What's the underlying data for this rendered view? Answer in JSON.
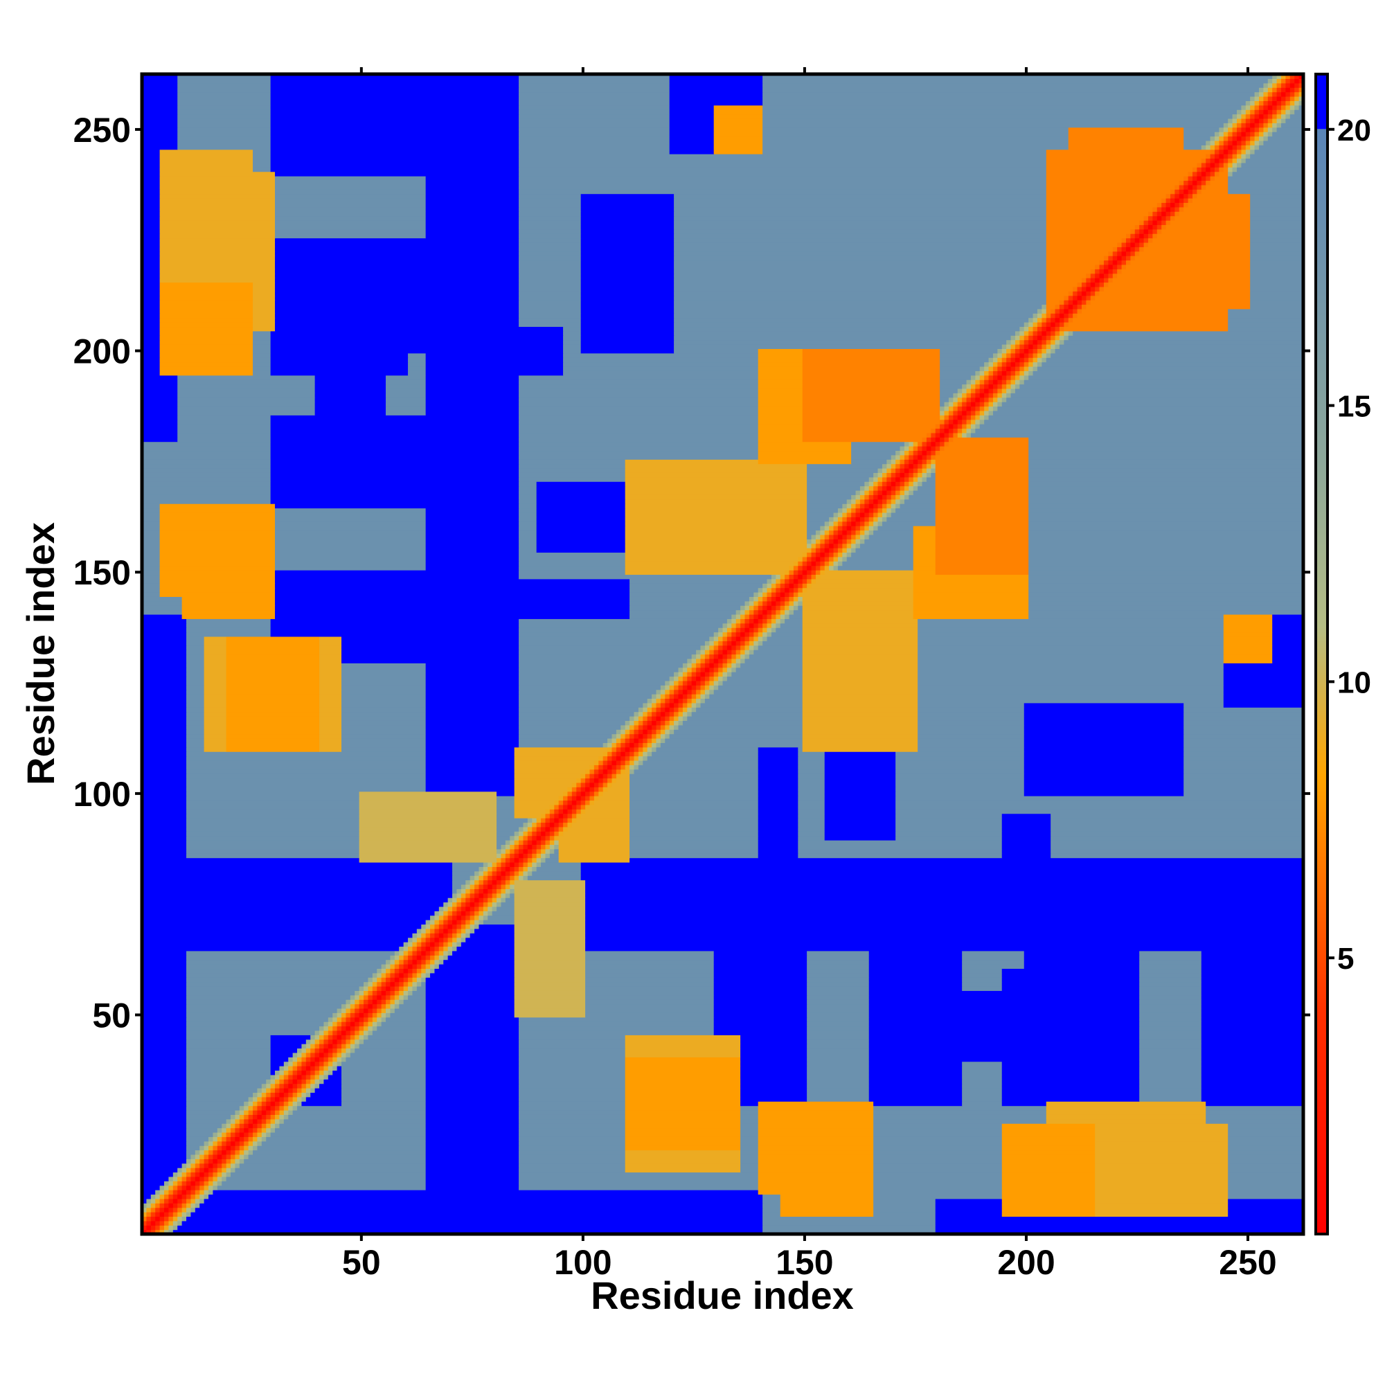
{
  "chart_data": {
    "type": "heatmap",
    "title": "",
    "xlabel": "Residue index",
    "ylabel": "Residue index",
    "xlim": [
      1,
      262
    ],
    "ylim": [
      1,
      262
    ],
    "x_ticks": [
      50,
      100,
      150,
      200,
      250
    ],
    "y_ticks": [
      50,
      100,
      150,
      200,
      250
    ],
    "x_tick_labels": [
      "50",
      "100",
      "150",
      "200",
      "250"
    ],
    "y_tick_labels": [
      "50",
      "100",
      "150",
      "200",
      "250"
    ],
    "colorbar": {
      "ticks": [
        5,
        10,
        15,
        20
      ],
      "tick_labels": [
        "5",
        "10",
        "15",
        "20"
      ],
      "range": [
        0,
        21
      ],
      "stops": [
        {
          "value": 0,
          "color": "#ff0000"
        },
        {
          "value": 4,
          "color": "#ff3000"
        },
        {
          "value": 8.3,
          "color": "#ffa500"
        },
        {
          "value": 11,
          "color": "#b5bd84"
        },
        {
          "value": 14,
          "color": "#8da89a"
        },
        {
          "value": 20,
          "color": "#5a85b8"
        },
        {
          "value": 20.01,
          "color": "#0000ff"
        },
        {
          "value": 21,
          "color": "#0000ff"
        }
      ]
    },
    "diagonal_value": 0,
    "background_value": 18,
    "far_value": 21,
    "contact_bands": [
      {
        "i": [
          5,
          30
        ],
        "j": [
          205,
          240
        ],
        "value": 9
      },
      {
        "i": [
          10,
          30
        ],
        "j": [
          140,
          165
        ],
        "value": 8
      },
      {
        "i": [
          15,
          45
        ],
        "j": [
          110,
          135
        ],
        "value": 9
      },
      {
        "i": [
          50,
          80
        ],
        "j": [
          85,
          100
        ],
        "value": 10
      },
      {
        "i": [
          85,
          105
        ],
        "j": [
          95,
          110
        ],
        "value": 9
      },
      {
        "i": [
          110,
          135
        ],
        "j": [
          20,
          40
        ],
        "value": 8
      },
      {
        "i": [
          145,
          165
        ],
        "j": [
          5,
          20
        ],
        "value": 8
      },
      {
        "i": [
          150,
          180
        ],
        "j": [
          180,
          200
        ],
        "value": 7
      },
      {
        "i": [
          110,
          150
        ],
        "j": [
          150,
          175
        ],
        "value": 9
      },
      {
        "i": [
          175,
          200
        ],
        "j": [
          140,
          160
        ],
        "value": 8
      },
      {
        "i": [
          195,
          215
        ],
        "j": [
          5,
          25
        ],
        "value": 8
      },
      {
        "i": [
          205,
          245
        ],
        "j": [
          205,
          245
        ],
        "value": 7
      },
      {
        "i": [
          230,
          250
        ],
        "j": [
          210,
          235
        ],
        "value": 7
      },
      {
        "i": [
          225,
          245
        ],
        "j": [
          5,
          25
        ],
        "value": 9
      },
      {
        "i": [
          130,
          140
        ],
        "j": [
          245,
          255
        ],
        "value": 8
      }
    ],
    "far_regions": [
      {
        "i": [
          1,
          10
        ],
        "j": [
          1,
          140
        ],
        "value": 21
      },
      {
        "i": [
          1,
          8
        ],
        "j": [
          180,
          262
        ],
        "value": 21
      },
      {
        "i": [
          30,
          45
        ],
        "j": [
          30,
          45
        ],
        "value": 21
      },
      {
        "i": [
          65,
          85
        ],
        "j": [
          10,
          70
        ],
        "value": 21
      },
      {
        "i": [
          65,
          85
        ],
        "j": [
          100,
          262
        ],
        "value": 21
      },
      {
        "i": [
          30,
          65
        ],
        "j": [
          130,
          150
        ],
        "value": 21
      },
      {
        "i": [
          30,
          65
        ],
        "j": [
          165,
          185
        ],
        "value": 21
      },
      {
        "i": [
          30,
          65
        ],
        "j": [
          200,
          225
        ],
        "value": 21
      },
      {
        "i": [
          30,
          65
        ],
        "j": [
          240,
          262
        ],
        "value": 21
      },
      {
        "i": [
          85,
          120
        ],
        "j": [
          1,
          10
        ],
        "value": 21
      },
      {
        "i": [
          140,
          148
        ],
        "j": [
          25,
          65
        ],
        "value": 21
      },
      {
        "i": [
          140,
          148
        ],
        "j": [
          85,
          110
        ],
        "value": 21
      },
      {
        "i": [
          150,
          180
        ],
        "j": [
          70,
          85
        ],
        "value": 21
      },
      {
        "i": [
          165,
          200
        ],
        "j": [
          40,
          55
        ],
        "value": 21
      },
      {
        "i": [
          195,
          205
        ],
        "j": [
          30,
          60
        ],
        "value": 21
      },
      {
        "i": [
          195,
          205
        ],
        "j": [
          70,
          95
        ],
        "value": 21
      },
      {
        "i": [
          215,
          225
        ],
        "j": [
          40,
          55
        ],
        "value": 21
      },
      {
        "i": [
          240,
          255
        ],
        "j": [
          35,
          55
        ],
        "value": 21
      },
      {
        "i": [
          235,
          262
        ],
        "j": [
          65,
          85
        ],
        "value": 21
      },
      {
        "i": [
          100,
          120
        ],
        "j": [
          200,
          235
        ],
        "value": 21
      },
      {
        "i": [
          90,
          110
        ],
        "j": [
          155,
          170
        ],
        "value": 21
      },
      {
        "i": [
          120,
          140
        ],
        "j": [
          245,
          262
        ],
        "value": 21
      }
    ]
  }
}
